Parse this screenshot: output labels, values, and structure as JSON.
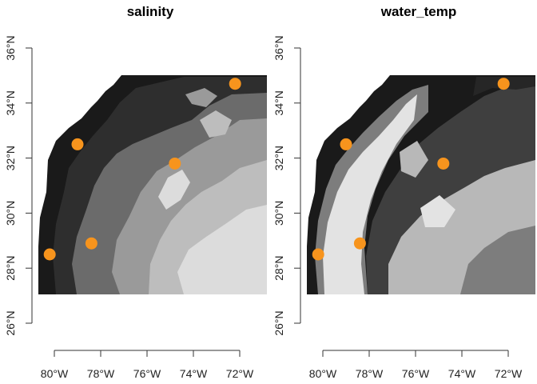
{
  "panels": [
    {
      "title": "salinity",
      "shading": {
        "coast": "#1a1a1a",
        "inner_dark": "#2e2e2e",
        "mid": "#6b6b6b",
        "light": "#9a9a9a",
        "lighter": "#bdbdbd",
        "lightest": "#dcdcdc"
      }
    },
    {
      "title": "water_temp",
      "shading": {
        "coast": "#1a1a1a",
        "inner_dark": "#262626",
        "mid": "#3f3f3f",
        "light": "#7d7d7d",
        "lighter": "#b8b8b8",
        "lightest": "#e3e3e3"
      }
    }
  ],
  "extent": {
    "lon": [
      -80.5,
      -71.0
    ],
    "lat": [
      27.0,
      35.0
    ]
  },
  "axis": {
    "lon_ticks": [
      {
        "value": -80,
        "label": "80°W"
      },
      {
        "value": -78,
        "label": "78°W"
      },
      {
        "value": -76,
        "label": "76°W"
      },
      {
        "value": -74,
        "label": "74°W"
      },
      {
        "value": -72,
        "label": "72°W"
      }
    ],
    "lat_ticks": [
      {
        "value": 26,
        "label": "26°N"
      },
      {
        "value": 28,
        "label": "28°N"
      },
      {
        "value": 30,
        "label": "30°N"
      },
      {
        "value": 32,
        "label": "32°N"
      },
      {
        "value": 34,
        "label": "34°N"
      },
      {
        "value": 36,
        "label": "36°N"
      }
    ]
  },
  "points": [
    {
      "lon": -80.2,
      "lat": 28.5
    },
    {
      "lon": -78.4,
      "lat": 28.9
    },
    {
      "lon": -79.0,
      "lat": 32.5
    },
    {
      "lon": -74.8,
      "lat": 31.8
    },
    {
      "lon": -72.2,
      "lat": 34.7
    }
  ],
  "point_color": "#f7941d"
}
